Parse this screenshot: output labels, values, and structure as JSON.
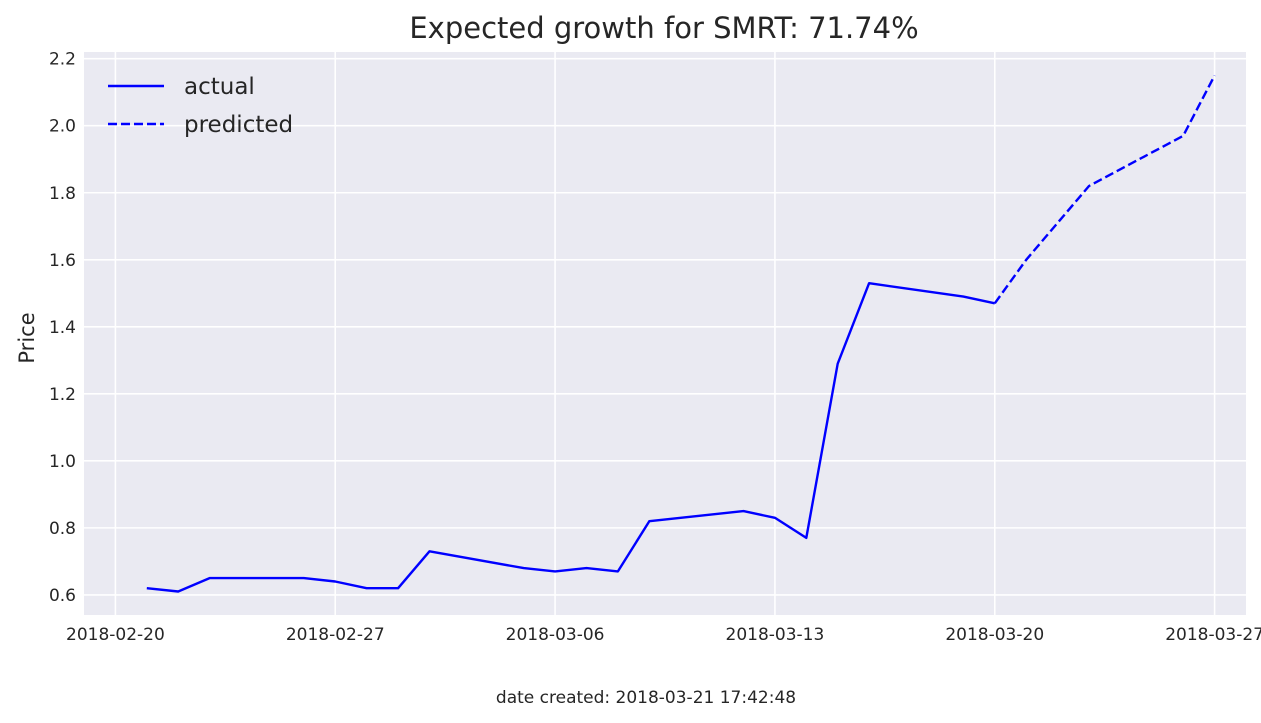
{
  "chart_data": {
    "type": "line",
    "title": "Expected growth for SMRT: 71.74%",
    "xlabel": "",
    "ylabel": "Price",
    "xlim": [
      "2018-02-19",
      "2018-03-28"
    ],
    "ylim": [
      0.54,
      2.22
    ],
    "x_ticks": [
      "2018-02-20",
      "2018-02-27",
      "2018-03-06",
      "2018-03-13",
      "2018-03-20",
      "2018-03-27"
    ],
    "y_ticks": [
      0.6,
      0.8,
      1.0,
      1.2,
      1.4,
      1.6,
      1.8,
      2.0,
      2.2
    ],
    "y_tick_labels": [
      "0.6",
      "0.8",
      "1.0",
      "1.2",
      "1.4",
      "1.6",
      "1.8",
      "2.0",
      "2.2"
    ],
    "grid": true,
    "legend": "upper left",
    "series": [
      {
        "name": "actual",
        "style": "solid",
        "color": "#0000ff",
        "points": [
          [
            "2018-02-21",
            0.62
          ],
          [
            "2018-02-22",
            0.61
          ],
          [
            "2018-02-23",
            0.65
          ],
          [
            "2018-02-26",
            0.65
          ],
          [
            "2018-02-27",
            0.64
          ],
          [
            "2018-02-28",
            0.62
          ],
          [
            "2018-03-01",
            0.62
          ],
          [
            "2018-03-02",
            0.73
          ],
          [
            "2018-03-05",
            0.68
          ],
          [
            "2018-03-06",
            0.67
          ],
          [
            "2018-03-07",
            0.68
          ],
          [
            "2018-03-08",
            0.67
          ],
          [
            "2018-03-09",
            0.82
          ],
          [
            "2018-03-12",
            0.85
          ],
          [
            "2018-03-13",
            0.83
          ],
          [
            "2018-03-14",
            0.77
          ],
          [
            "2018-03-15",
            1.29
          ],
          [
            "2018-03-16",
            1.53
          ],
          [
            "2018-03-19",
            1.49
          ],
          [
            "2018-03-20",
            1.47
          ]
        ]
      },
      {
        "name": "predicted",
        "style": "dashed",
        "color": "#0000ff",
        "points": [
          [
            "2018-03-20",
            1.47
          ],
          [
            "2018-03-21",
            1.6
          ],
          [
            "2018-03-22",
            1.71
          ],
          [
            "2018-03-23",
            1.82
          ],
          [
            "2018-03-26",
            1.97
          ],
          [
            "2018-03-27",
            2.15
          ]
        ]
      }
    ],
    "footer": "date created: 2018-03-21 17:42:48"
  },
  "style": {
    "plot_background": "#eaeaf2",
    "grid_color": "#ffffff",
    "line_color": "#0000ff"
  }
}
